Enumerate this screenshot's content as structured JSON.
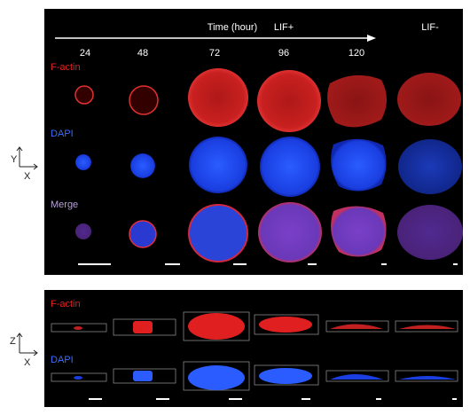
{
  "top_panel": {
    "time_label": "Time (hour)",
    "lif_plus": "LIF+",
    "lif_minus": "LIF-",
    "timepoints": [
      24,
      48,
      72,
      96,
      120
    ],
    "rows": [
      "F-actin",
      "DAPI",
      "Merge"
    ]
  },
  "axes_xy": {
    "y": "Y",
    "x": "X"
  },
  "axes_zx": {
    "z": "Z",
    "x": "X"
  },
  "bottom_panel": {
    "rows": [
      "F-actin",
      "DAPI"
    ]
  }
}
